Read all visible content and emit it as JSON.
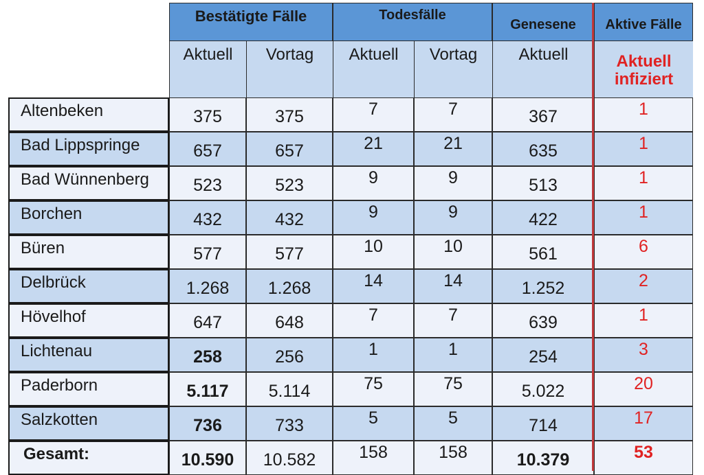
{
  "header": {
    "confirmed": "Bestätigte Fälle",
    "deaths": "Todesfälle",
    "recovered": "Genesene",
    "active": "Aktive Fälle",
    "current": "Aktuell",
    "previous": "Vortag",
    "active_current_line1": "Aktuell",
    "active_current_line2": "infiziert"
  },
  "rows": [
    {
      "name": "Altenbeken",
      "c_now": "375",
      "c_prev": "375",
      "d_now": "7",
      "d_prev": "7",
      "rec": "367",
      "active": "1"
    },
    {
      "name": "Bad Lippspringe",
      "c_now": "657",
      "c_prev": "657",
      "d_now": "21",
      "d_prev": "21",
      "rec": "635",
      "active": "1"
    },
    {
      "name": "Bad Wünnenberg",
      "c_now": "523",
      "c_prev": "523",
      "d_now": "9",
      "d_prev": "9",
      "rec": "513",
      "active": "1"
    },
    {
      "name": "Borchen",
      "c_now": "432",
      "c_prev": "432",
      "d_now": "9",
      "d_prev": "9",
      "rec": "422",
      "active": "1"
    },
    {
      "name": "Büren",
      "c_now": "577",
      "c_prev": "577",
      "d_now": "10",
      "d_prev": "10",
      "rec": "561",
      "active": "6"
    },
    {
      "name": "Delbrück",
      "c_now": "1.268",
      "c_prev": "1.268",
      "d_now": "14",
      "d_prev": "14",
      "rec": "1.252",
      "active": "2"
    },
    {
      "name": "Hövelhof",
      "c_now": "647",
      "c_prev": "648",
      "d_now": "7",
      "d_prev": "7",
      "rec": "639",
      "active": "1"
    },
    {
      "name": "Lichtenau",
      "c_now": "258",
      "c_prev": "256",
      "d_now": "1",
      "d_prev": "1",
      "rec": "254",
      "active": "3"
    },
    {
      "name": "Paderborn",
      "c_now": "5.117",
      "c_prev": "5.114",
      "d_now": "75",
      "d_prev": "75",
      "rec": "5.022",
      "active": "20"
    },
    {
      "name": "Salzkotten",
      "c_now": "736",
      "c_prev": "733",
      "d_now": "5",
      "d_prev": "5",
      "rec": "714",
      "active": "17"
    },
    {
      "name": "Gesamt:",
      "c_now": "10.590",
      "c_prev": "10.582",
      "d_now": "158",
      "d_prev": "158",
      "rec": "10.379",
      "active": "53"
    }
  ],
  "colors": {
    "header_blue": "#5b96d6",
    "subheader_blue": "#c6d9f0",
    "row_light": "#eef2fa",
    "active_red": "#e02222",
    "divider_red": "#c0393b"
  }
}
